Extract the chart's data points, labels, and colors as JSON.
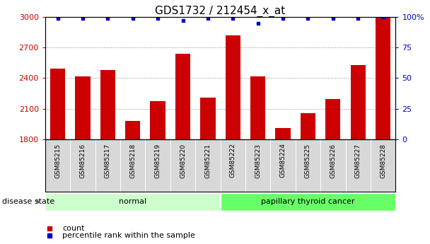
{
  "title": "GDS1732 / 212454_x_at",
  "samples": [
    "GSM85215",
    "GSM85216",
    "GSM85217",
    "GSM85218",
    "GSM85219",
    "GSM85220",
    "GSM85221",
    "GSM85222",
    "GSM85223",
    "GSM85224",
    "GSM85225",
    "GSM85226",
    "GSM85227",
    "GSM85228"
  ],
  "counts": [
    2490,
    2415,
    2480,
    1980,
    2170,
    2640,
    2205,
    2820,
    2420,
    1910,
    2055,
    2195,
    2530,
    2995
  ],
  "percentiles": [
    99,
    99,
    99,
    99,
    99,
    97,
    99,
    99,
    95,
    99,
    99,
    99,
    99,
    100
  ],
  "ymin": 1800,
  "ymax": 3000,
  "yticks": [
    1800,
    2100,
    2400,
    2700,
    3000
  ],
  "right_yticks": [
    0,
    25,
    50,
    75,
    100
  ],
  "bar_color": "#cc0000",
  "dot_color": "#0000cc",
  "groups": [
    {
      "label": "normal",
      "start": 0,
      "end": 7,
      "color": "#ccffcc"
    },
    {
      "label": "papillary thyroid cancer",
      "start": 7,
      "end": 14,
      "color": "#66ff66"
    }
  ],
  "disease_state_label": "disease state",
  "legend_count": "count",
  "legend_percentile": "percentile rank within the sample",
  "title_fontsize": 11,
  "tick_fontsize": 8,
  "label_fontsize": 8,
  "bg_label_color": "#d8d8d8",
  "bar_width": 0.6
}
